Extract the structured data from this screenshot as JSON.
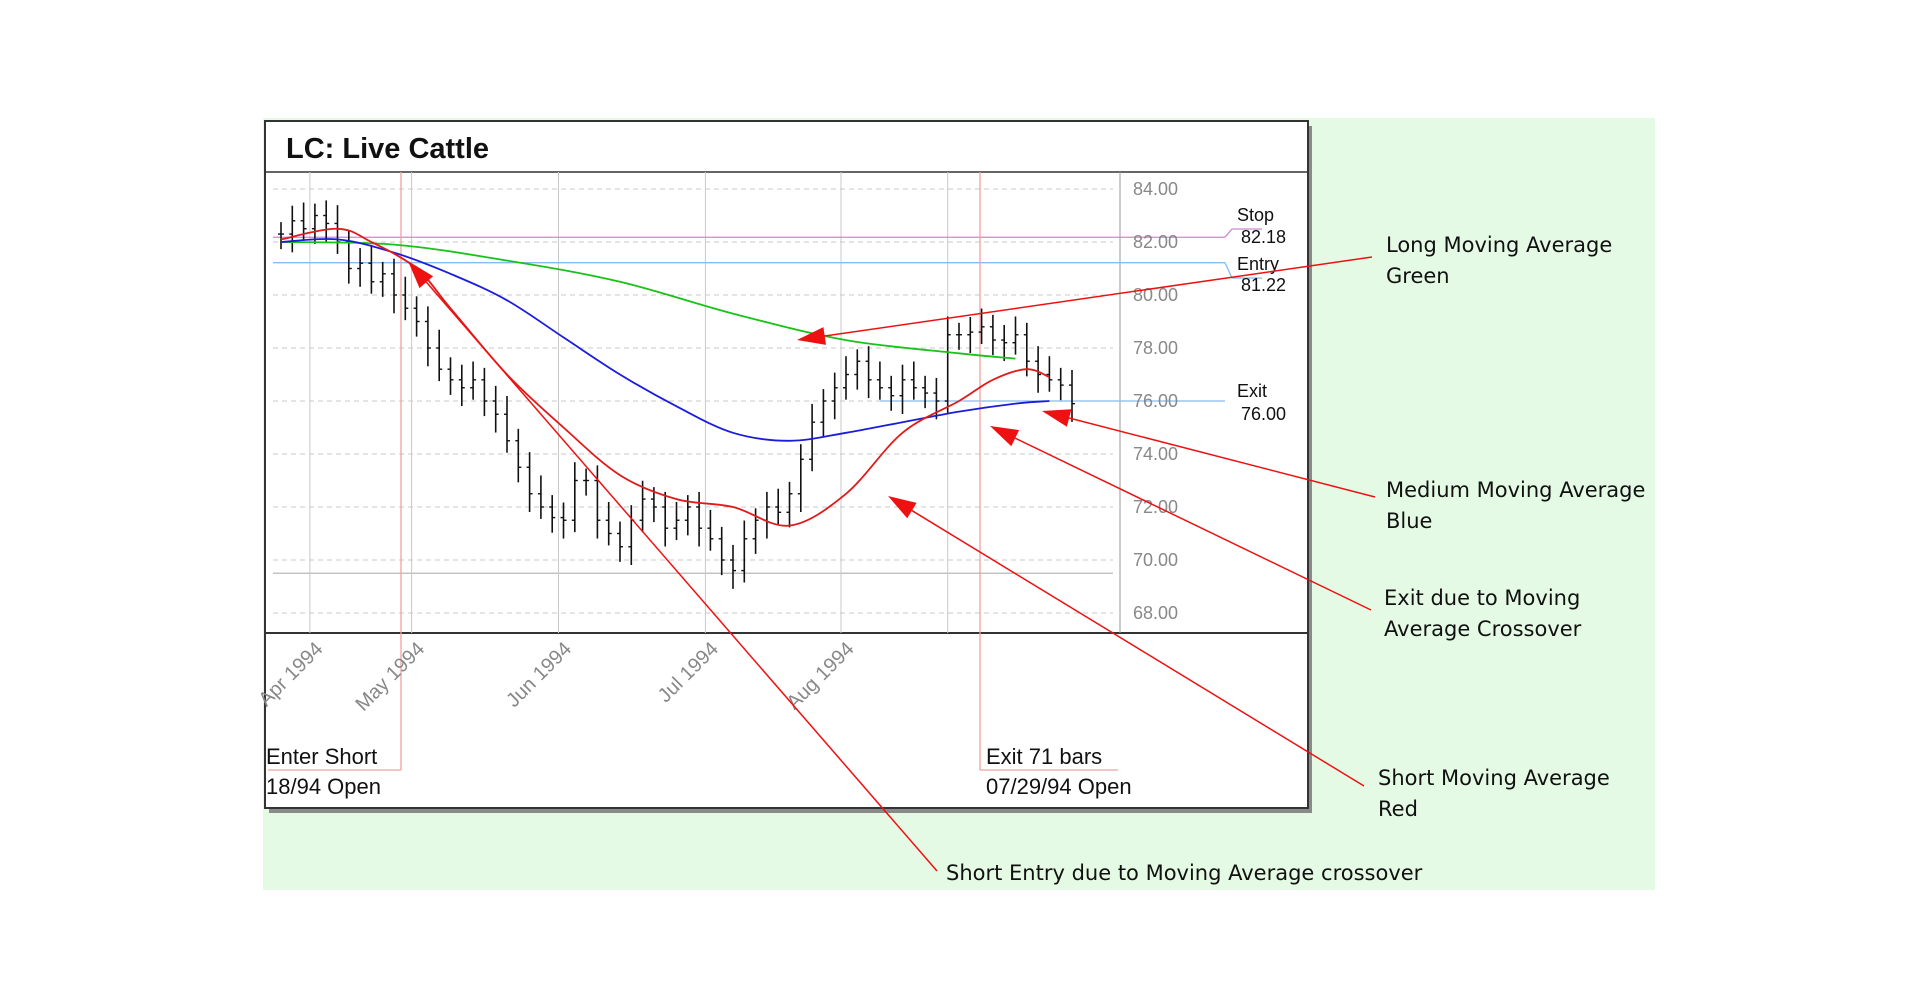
{
  "chart_data": {
    "type": "ohlc",
    "title": "LC: Live Cattle",
    "x_tick_labels": [
      "Apr 1994",
      "May 1994",
      "Jun 1994",
      "Jul 1994",
      "Aug 1994"
    ],
    "y_tick_labels": [
      "84.00",
      "82.00",
      "80.00",
      "78.00",
      "76.00",
      "74.00",
      "72.00",
      "70.00",
      "68.00"
    ],
    "ylim": [
      67.2,
      84.6
    ],
    "grid": true,
    "close_series": [
      82.3,
      82.8,
      82.5,
      83.0,
      82.7,
      82.0,
      81.0,
      81.2,
      80.5,
      80.8,
      80.0,
      79.5,
      79.0,
      78.0,
      77.2,
      76.8,
      76.5,
      76.8,
      76.0,
      75.5,
      74.5,
      73.5,
      72.5,
      72.0,
      71.6,
      71.5,
      73.0,
      73.0,
      71.5,
      71.0,
      70.5,
      71.5,
      72.3,
      72.0,
      71.2,
      71.5,
      72.0,
      71.2,
      70.8,
      70.0,
      69.6,
      70.8,
      71.5,
      72.0,
      71.8,
      72.5,
      73.8,
      75.2,
      76.0,
      76.5,
      77.0,
      77.5,
      76.8,
      76.5,
      76.2,
      76.8,
      76.5,
      76.3,
      76.0,
      78.5,
      78.5,
      78.6,
      78.8,
      78.3,
      78.2,
      78.5,
      77.5,
      77.0,
      76.8,
      76.6,
      75.9
    ],
    "series": [
      {
        "name": "Long Moving Average",
        "color": "#19c219",
        "x": [
          0,
          10,
          20,
          30,
          40,
          50,
          60,
          65
        ],
        "y": [
          82.0,
          81.9,
          81.3,
          80.5,
          79.3,
          78.3,
          77.8,
          77.6
        ]
      },
      {
        "name": "Medium Moving Average",
        "color": "#1c1cdc",
        "x": [
          0,
          5,
          10,
          15,
          20,
          25,
          30,
          35,
          40,
          45,
          50,
          55,
          60,
          65,
          68
        ],
        "y": [
          82.0,
          82.1,
          81.6,
          80.8,
          79.8,
          78.4,
          77.0,
          75.8,
          74.8,
          74.5,
          74.8,
          75.2,
          75.6,
          75.9,
          76.0
        ]
      },
      {
        "name": "Short Moving Average",
        "color": "#e01a1a",
        "x": [
          0,
          5,
          8,
          12,
          15,
          20,
          25,
          30,
          35,
          40,
          45,
          50,
          55,
          60,
          63,
          66,
          68
        ],
        "y": [
          82.1,
          82.5,
          82.0,
          81.0,
          79.5,
          77.0,
          75.0,
          73.2,
          72.3,
          72.0,
          71.3,
          72.5,
          74.8,
          76.0,
          76.8,
          77.2,
          76.9
        ]
      }
    ],
    "levels": [
      {
        "label": "Stop",
        "value": 82.18,
        "value_text": "82.18",
        "color": "#cc88cc"
      },
      {
        "label": "Entry",
        "value": 81.22,
        "value_text": "81.22",
        "color": "#88bbee"
      },
      {
        "label": "Exit",
        "value": 76.0,
        "value_text": "76.00",
        "color": "#88bbee"
      }
    ],
    "events": [
      {
        "label": "Enter Short",
        "sublabel": "18/94 Open",
        "bar": 8
      },
      {
        "label": "Exit 71 bars",
        "sublabel": "07/29/94 Open",
        "bar": 52
      }
    ]
  },
  "annotations": [
    {
      "key": "long",
      "lines": [
        "Long Moving Average",
        "Green"
      ],
      "target": "long-ma"
    },
    {
      "key": "medium",
      "lines": [
        "Medium Moving Average",
        "Blue"
      ],
      "target": "medium-ma"
    },
    {
      "key": "exit",
      "lines": [
        "Exit due to Moving",
        "Average Crossover"
      ],
      "target": "exit-cross"
    },
    {
      "key": "short",
      "lines": [
        "Short Moving Average",
        "Red"
      ],
      "target": "short-ma"
    },
    {
      "key": "entry",
      "lines": [
        "Short Entry due to Moving Average crossover"
      ],
      "target": "entry-cross"
    }
  ],
  "colors": {
    "panel_bg": "#e5fae5",
    "chart_bg": "#ffffff",
    "arrow": "#ee1111",
    "deco_line": "#2ab5b0"
  }
}
